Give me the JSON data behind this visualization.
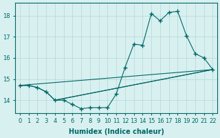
{
  "xlabel": "Humidex (Indice chaleur)",
  "bg_color": "#d8f0f0",
  "line_color": "#006666",
  "grid_color": "#b0d8d8",
  "series": {
    "line1": {
      "x": [
        0,
        1,
        2,
        3,
        4,
        5,
        6,
        7,
        8,
        9,
        10,
        11,
        12,
        13,
        14,
        15,
        16,
        17,
        18,
        19,
        20,
        21,
        22
      ],
      "y": [
        14.7,
        14.7,
        14.6,
        14.4,
        14.0,
        14.0,
        13.8,
        13.6,
        13.65,
        13.65,
        13.65,
        14.3,
        15.55,
        16.65,
        16.6,
        18.1,
        17.75,
        18.15,
        18.2,
        17.05,
        16.2,
        16.0,
        15.45
      ]
    },
    "line2": {
      "x": [
        0,
        1,
        2,
        3,
        4,
        22
      ],
      "y": [
        14.7,
        14.7,
        14.6,
        14.4,
        14.0,
        15.45
      ]
    },
    "line3": {
      "x": [
        0,
        22
      ],
      "y": [
        14.7,
        15.45
      ]
    },
    "line4": {
      "x": [
        4,
        22
      ],
      "y": [
        14.0,
        15.45
      ]
    }
  },
  "xlim": [
    -0.5,
    22.5
  ],
  "ylim": [
    13.4,
    18.6
  ],
  "yticks": [
    14,
    15,
    16,
    17,
    18
  ],
  "xticks": [
    0,
    1,
    2,
    3,
    4,
    5,
    6,
    7,
    8,
    9,
    10,
    11,
    12,
    13,
    14,
    15,
    16,
    17,
    18,
    19,
    20,
    21,
    22
  ]
}
